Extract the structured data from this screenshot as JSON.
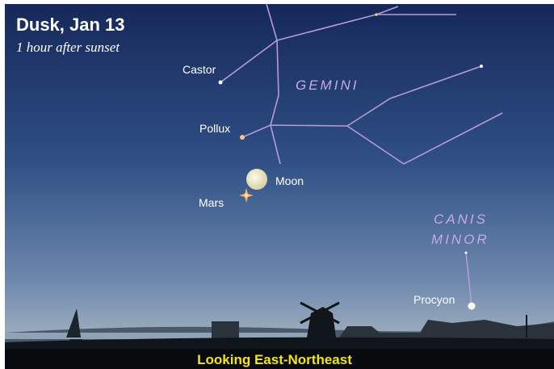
{
  "header": {
    "title": "Dusk, Jan 13",
    "subtitle": "1 hour after sunset"
  },
  "labels": {
    "castor": "Castor",
    "pollux": "Pollux",
    "gemini": "GEMINI",
    "moon": "Moon",
    "mars": "Mars",
    "canis_minor": [
      "CANIS",
      "MINOR"
    ],
    "procyon": "Procyon"
  },
  "footer": "Looking East-Northeast"
}
